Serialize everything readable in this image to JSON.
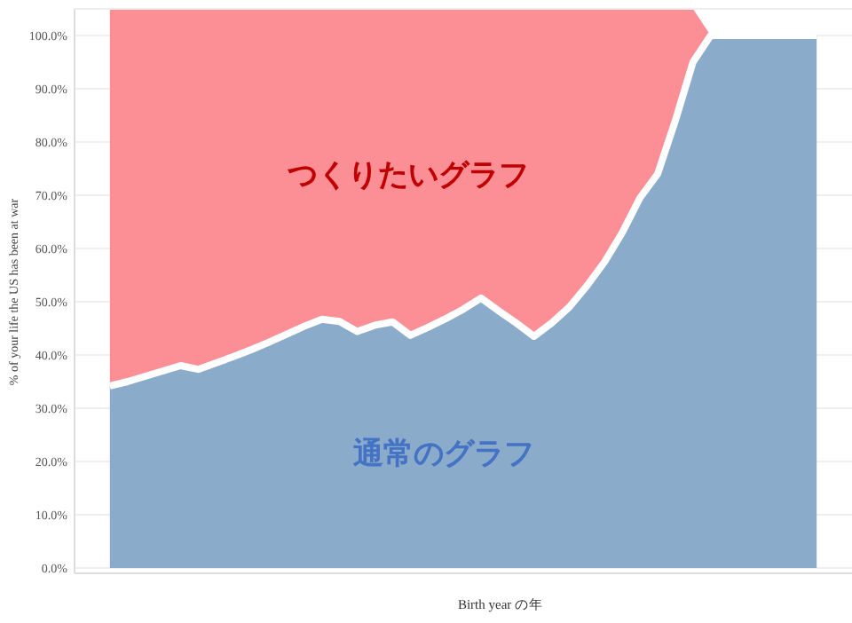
{
  "chart_data": {
    "type": "area",
    "stacked": true,
    "xlabel": "Birth year の年",
    "ylabel": "% of your life the US has been at war",
    "categories": [
      null,
      null,
      null,
      null,
      null,
      null,
      null,
      null,
      null,
      null,
      null,
      null,
      null,
      null,
      null,
      null,
      null,
      null,
      null,
      null,
      null,
      null,
      null,
      null,
      null,
      null,
      null,
      null,
      null,
      null,
      null,
      null,
      null,
      null,
      null,
      null,
      null,
      null,
      null,
      null,
      null
    ],
    "series": [
      {
        "color": "#8aabca",
        "values": [
          34.2,
          35,
          36,
          37,
          38,
          37.3,
          38.5,
          39.7,
          41,
          42.4,
          43.9,
          45.4,
          46.7,
          46.3,
          44.4,
          45.6,
          46.2,
          43.7,
          45.2,
          46.8,
          48.6,
          50.7,
          48.3,
          46,
          43.5,
          46,
          49,
          53,
          57.5,
          63,
          69.5,
          74,
          84,
          95,
          100,
          100,
          100,
          100,
          100,
          100,
          100
        ]
      },
      {
        "color": "#fc8f96",
        "values": [
          70.8,
          70,
          69,
          68,
          67,
          67.7,
          66.5,
          65.3,
          64,
          62.6,
          61.1,
          59.6,
          58.3,
          58.7,
          60.6,
          59.4,
          58.8,
          61.3,
          59.8,
          58.2,
          56.4,
          54.3,
          56.7,
          59,
          61.5,
          59,
          56,
          52,
          47.5,
          42,
          35.5,
          31,
          21,
          10,
          0,
          0,
          0,
          0,
          0,
          0,
          0
        ]
      }
    ],
    "ylim": [
      0,
      105
    ],
    "yticks": [
      {
        "value": 0,
        "label": "0.0%"
      },
      {
        "value": 10,
        "label": "10.0%"
      },
      {
        "value": 20,
        "label": "20.0%"
      },
      {
        "value": 30,
        "label": "30.0%"
      },
      {
        "value": 40,
        "label": "40.0%"
      },
      {
        "value": 50,
        "label": "50.0%"
      },
      {
        "value": 60,
        "label": "60.0%"
      },
      {
        "value": 70,
        "label": "70.0%"
      },
      {
        "value": 80,
        "label": "80.0%"
      },
      {
        "value": 90,
        "label": "90.0%"
      },
      {
        "value": 100,
        "label": "100.0%"
      }
    ],
    "grid": "y",
    "tick_labels": "y",
    "annotations": [
      "つくりたいグラフ",
      "通常のグラフ"
    ]
  }
}
